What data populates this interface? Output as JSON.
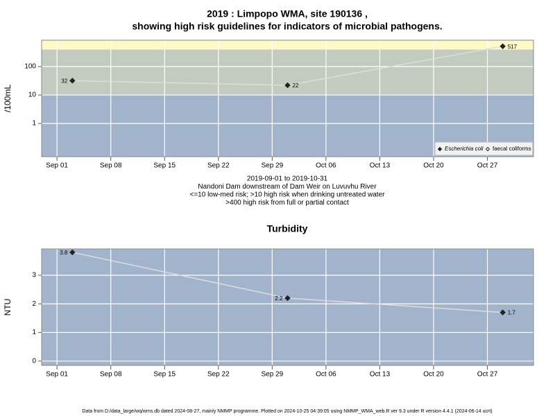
{
  "chart_data": [
    {
      "type": "line",
      "title": [
        "2019 : Limpopo WMA, site 190136 ,",
        "showing high risk guidelines for indicators of microbial pathogens."
      ],
      "ylabel": "/100mL",
      "log_y": true,
      "grid": true,
      "legend": "bottom-right",
      "x": [
        "2019-09-03",
        "2019-10-01",
        "2019-10-29"
      ],
      "series": [
        {
          "name": "Escherichia coli",
          "color": "#222222",
          "marker": "filled",
          "values": [
            32,
            22,
            517
          ]
        },
        {
          "name": "faecal coliforms",
          "color": "#222222",
          "marker": "open",
          "values": [
            null,
            null,
            null
          ]
        }
      ],
      "line_color": "#dddddd",
      "bands": [
        {
          "to": 10,
          "color": "#a2b3cc"
        },
        {
          "from": 10,
          "to": 400,
          "color": "#c3cbbf"
        },
        {
          "from": 400,
          "color": "#fdfac8"
        }
      ],
      "xlim": [
        "2019-08-30",
        "2019-11-02"
      ],
      "xticks": [
        {
          "value": "2019-09-01",
          "label": "Sep 01"
        },
        {
          "value": "2019-09-08",
          "label": "Sep 08"
        },
        {
          "value": "2019-09-15",
          "label": "Sep 15"
        },
        {
          "value": "2019-09-22",
          "label": "Sep 22"
        },
        {
          "value": "2019-09-29",
          "label": "Sep 29"
        },
        {
          "value": "2019-10-06",
          "label": "Oct 06"
        },
        {
          "value": "2019-10-13",
          "label": "Oct 13"
        },
        {
          "value": "2019-10-20",
          "label": "Oct 20"
        },
        {
          "value": "2019-10-27",
          "label": "Oct 27"
        }
      ],
      "ylim": [
        0.068,
        845
      ],
      "yticks": [
        1,
        10,
        100
      ],
      "notes": [
        "2019-09-01 to 2019-10-31",
        "Nandoni Dam downstream of Dam Weir on Luvuvhu River",
        "<=10 low-med risk; >10 high risk when drinking untreated water",
        ">400 high risk from full or partial contact"
      ]
    },
    {
      "type": "line",
      "title": [
        "Turbidity"
      ],
      "ylabel": "NTU",
      "log_y": false,
      "grid": true,
      "x": [
        "2019-09-03",
        "2019-10-01",
        "2019-10-29"
      ],
      "series": [
        {
          "color": "#222222",
          "marker": "filled",
          "values": [
            3.8,
            2.2,
            1.7
          ]
        }
      ],
      "line_color": "#dddddd",
      "bands": [
        {
          "color": "#a2b3cc"
        }
      ],
      "xlim": [
        "2019-08-30",
        "2019-11-02"
      ],
      "xticks": [
        {
          "value": "2019-09-01",
          "label": "Sep 01"
        },
        {
          "value": "2019-09-08",
          "label": "Sep 08"
        },
        {
          "value": "2019-09-15",
          "label": "Sep 15"
        },
        {
          "value": "2019-09-22",
          "label": "Sep 22"
        },
        {
          "value": "2019-09-29",
          "label": "Sep 29"
        },
        {
          "value": "2019-10-06",
          "label": "Oct 06"
        },
        {
          "value": "2019-10-13",
          "label": "Oct 13"
        },
        {
          "value": "2019-10-20",
          "label": "Oct 20"
        },
        {
          "value": "2019-10-27",
          "label": "Oct 27"
        }
      ],
      "ylim": [
        -0.15,
        3.92
      ],
      "yticks": [
        0,
        1,
        2,
        3
      ]
    }
  ],
  "footer": "Data from D:/data_large/wq/wms.db dated 2024-08-27, mainly NMMP programme. Plotted on 2024-10-25 04:39:05 using NMMP_WMA_web.R ver 9.3 under R version 4.4.1 (2024-06-14 ucrt)"
}
